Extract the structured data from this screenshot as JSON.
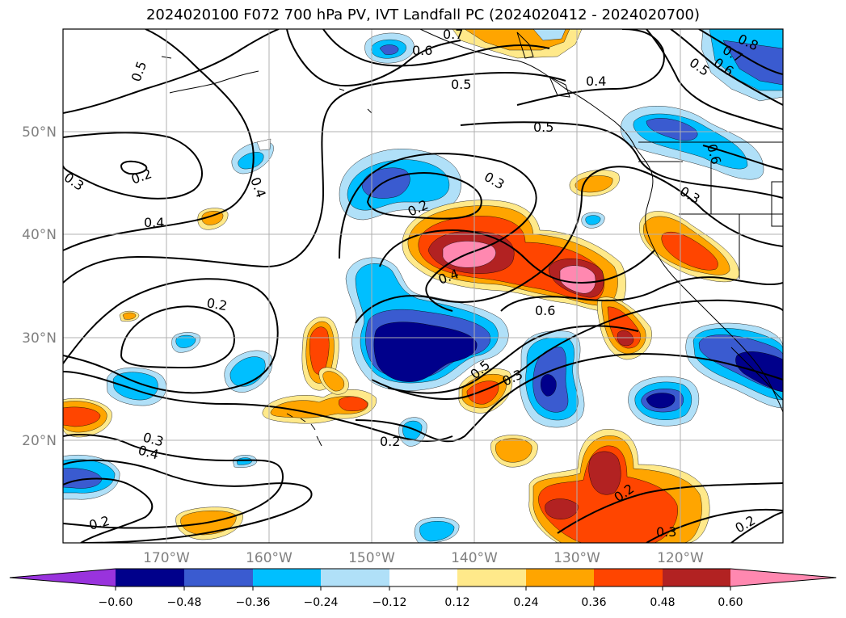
{
  "title": "2024020100 F072 700 hPa PV, IVT Landfall PC (2024020412 - 2024020700)",
  "lat_labels": [
    "50°N",
    "40°N",
    "30°N",
    "20°N"
  ],
  "lon_labels": [
    "170°W",
    "160°W",
    "150°W",
    "140°W",
    "130°W",
    "120°W"
  ],
  "colorbar": {
    "tick_labels": [
      "−0.60",
      "−0.48",
      "−0.36",
      "−0.24",
      "−0.12",
      "0.12",
      "0.24",
      "0.36",
      "0.48",
      "0.60"
    ],
    "colors": [
      "#9933dd",
      "#00008b",
      "#3a5bd0",
      "#00bfff",
      "#b0e0f8",
      "#ffffff",
      "#ffe98a",
      "#ffa500",
      "#ff4500",
      "#b22222",
      "#ff88b0"
    ]
  },
  "contour_labels": [
    "0.7",
    "0.6",
    "0.5",
    "0.4",
    "0.5",
    "0.8",
    "0.7",
    "0.6",
    "0.5",
    "0.5",
    "0.2",
    "0.3",
    "0.4",
    "0.3",
    "0.2",
    "0.4",
    "0.3",
    "0.4",
    "0.2",
    "0.6",
    "0.6",
    "0.5",
    "0.3",
    "0.3",
    "0.4",
    "0.2",
    "0.2",
    "0.2",
    "0.3",
    "0.2"
  ]
}
